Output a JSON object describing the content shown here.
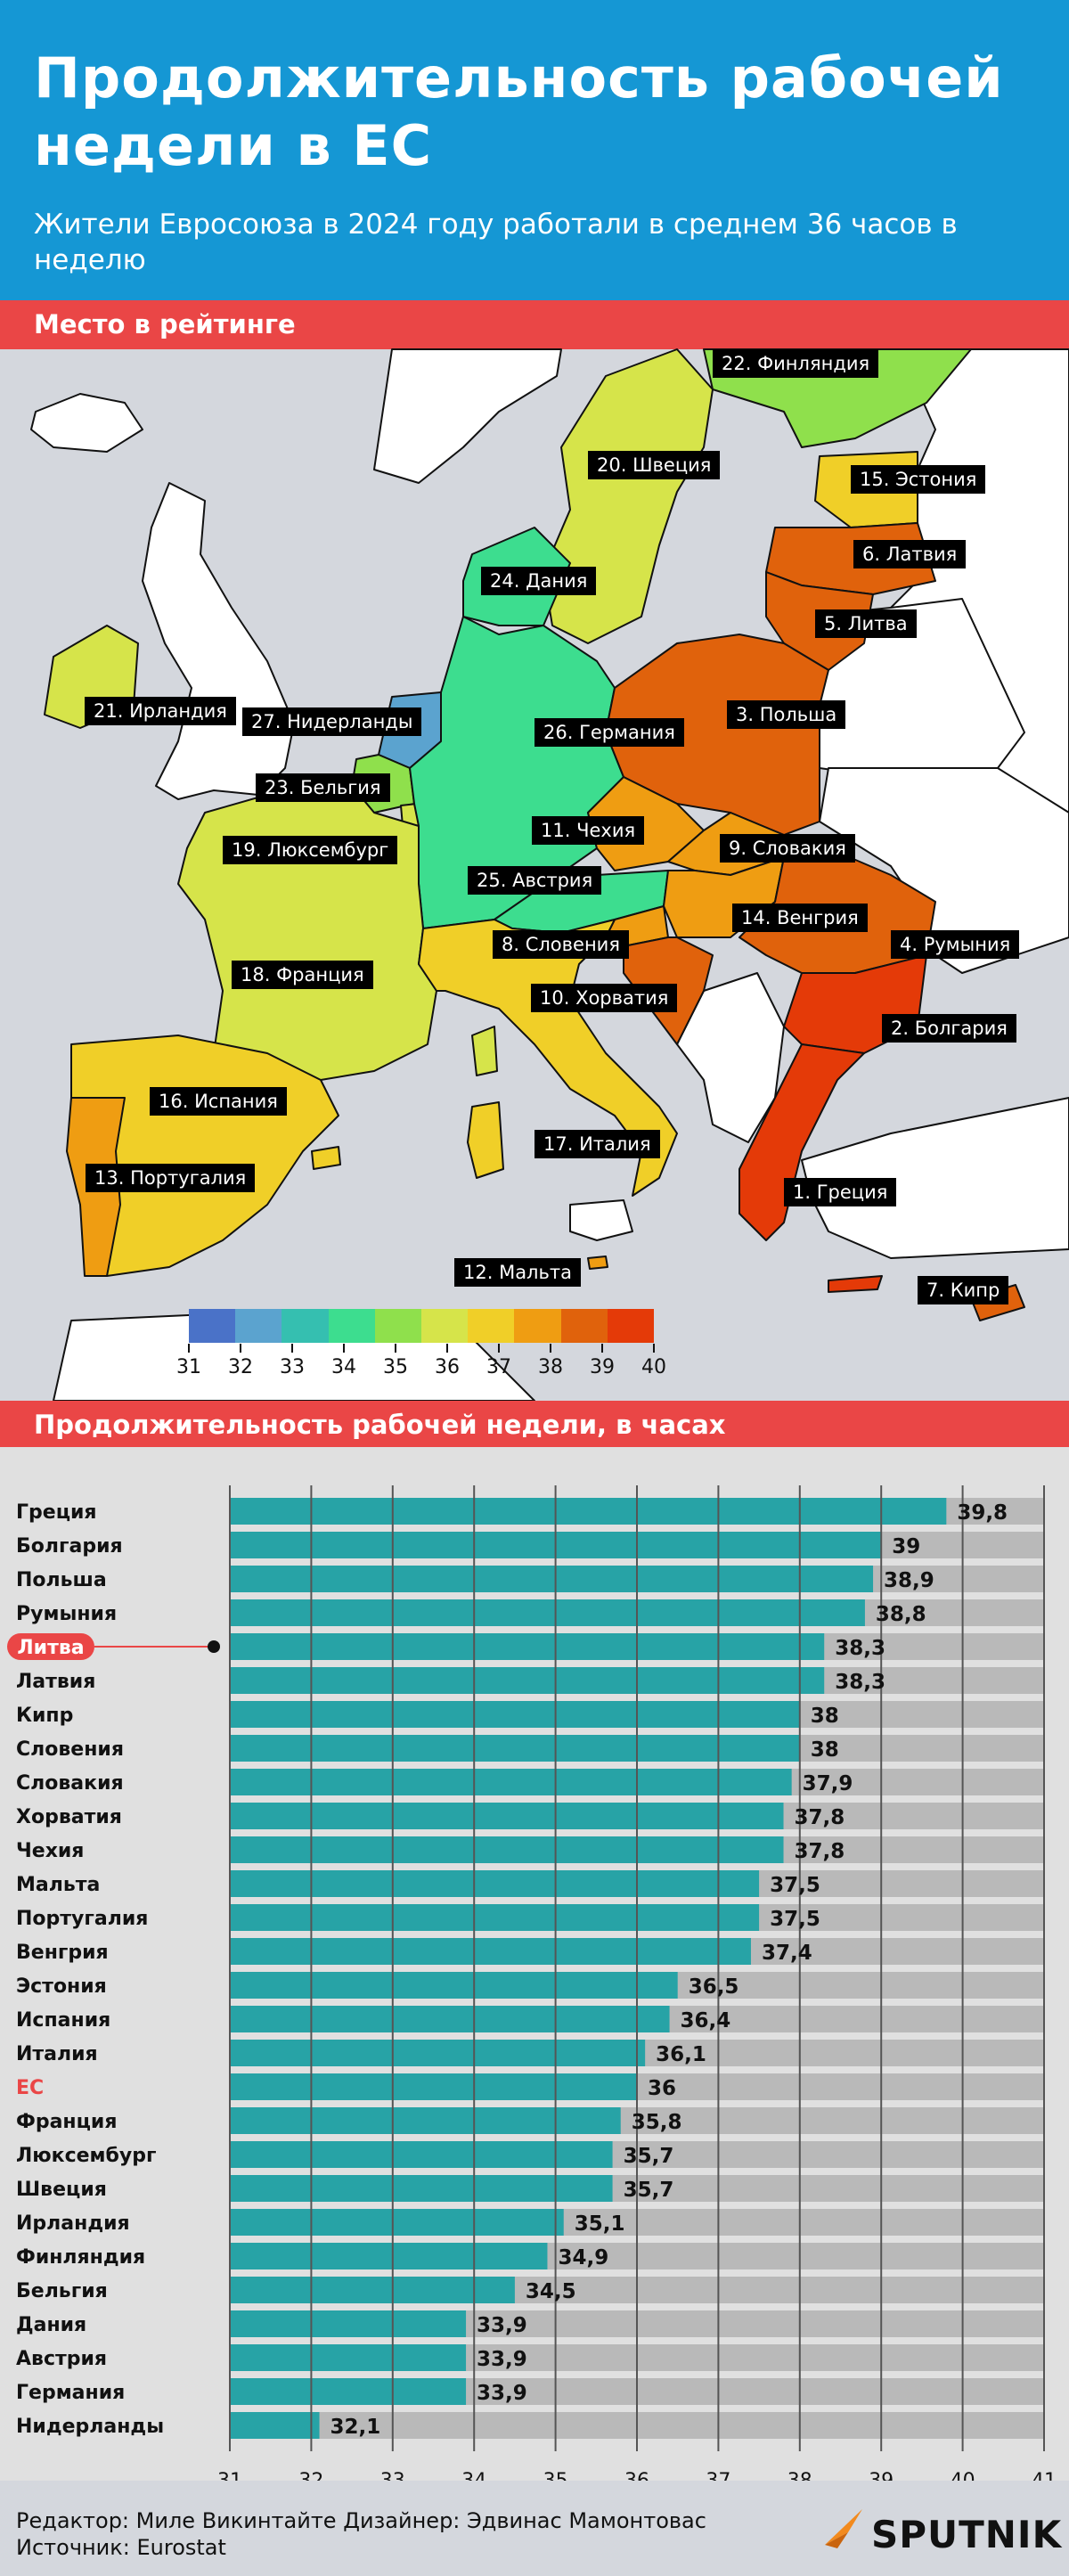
{
  "header": {
    "title": "Продолжительность рабочей недели в ЕС",
    "subtitle": "Жители Евросоюза в 2024 году работали в среднем 36 часов в неделю"
  },
  "map_section": {
    "band_label": "Место в рейтинге",
    "labels": [
      "22. Финляндия",
      "20. Швеция",
      "15. Эстония",
      "6. Латвия",
      "24. Дания",
      "5. Литва",
      "21. Ирландия",
      "27. Нидерланды",
      "3. Польша",
      "26. Германия",
      "23. Бельгия",
      "11. Чехия",
      "9. Словакия",
      "19. Люксембург",
      "25. Австрия",
      "14. Венгрия",
      "8. Словения",
      "4. Румыния",
      "18. Франция",
      "10. Хорватия",
      "2. Болгария",
      "16. Испания",
      "17. Италия",
      "13. Португалия",
      "1. Греция",
      "12. Мальта",
      "7. Кипр"
    ],
    "legend_colors": [
      "#4a72c8",
      "#5ba3cf",
      "#35bfb0",
      "#3ddd8f",
      "#8fe04c",
      "#d6e44a",
      "#f0cf28",
      "#ef9d12",
      "#e0620c",
      "#e43a08"
    ],
    "legend_ticks": [
      "31",
      "32",
      "33",
      "34",
      "35",
      "36",
      "37",
      "38",
      "39",
      "40"
    ]
  },
  "chart_section": {
    "band_label": "Продолжительность рабочей недели, в часах"
  },
  "chart_data": {
    "type": "bar",
    "orientation": "horizontal",
    "categories": [
      "Греция",
      "Болгария",
      "Польша",
      "Румыния",
      "Литва",
      "Латвия",
      "Кипр",
      "Словения",
      "Словакия",
      "Хорватия",
      "Чехия",
      "Мальта",
      "Португалия",
      "Венгрия",
      "Эстония",
      "Испания",
      "Италия",
      "ЕС",
      "Франция",
      "Люксембург",
      "Швеция",
      "Ирландия",
      "Финляндия",
      "Бельгия",
      "Дания",
      "Австрия",
      "Германия",
      "Нидерланды"
    ],
    "values": [
      39.8,
      39,
      38.9,
      38.8,
      38.3,
      38.3,
      38,
      38,
      37.9,
      37.8,
      37.8,
      37.5,
      37.5,
      37.4,
      36.5,
      36.4,
      36.1,
      36,
      35.8,
      35.7,
      35.7,
      35.1,
      34.9,
      34.5,
      33.9,
      33.9,
      33.9,
      32.1
    ],
    "value_labels": [
      "39,8",
      "39",
      "38,9",
      "38,8",
      "38,3",
      "38,3",
      "38",
      "38",
      "37,9",
      "37,8",
      "37,8",
      "37,5",
      "37,5",
      "37,4",
      "36,5",
      "36,4",
      "36,1",
      "36",
      "35,8",
      "35,7",
      "35,7",
      "35,1",
      "34,9",
      "34,5",
      "33,9",
      "33,9",
      "33,9",
      "32,1"
    ],
    "xlim": [
      31,
      41
    ],
    "xticks": [
      "31",
      "32",
      "33",
      "34",
      "35",
      "36",
      "37",
      "38",
      "39",
      "40",
      "41"
    ],
    "highlight": [
      "Литва",
      "ЕС"
    ],
    "bar_color": "#27a3a6",
    "highlight_color": "#ea4646",
    "grid": true
  },
  "footer": {
    "credits_line1": "Редактор: Миле Викинтайте   Дизайнер: Эдвинас Мамонтовас",
    "credits_line2": "Источник: Eurostat",
    "brand": "SPUTNIK"
  }
}
